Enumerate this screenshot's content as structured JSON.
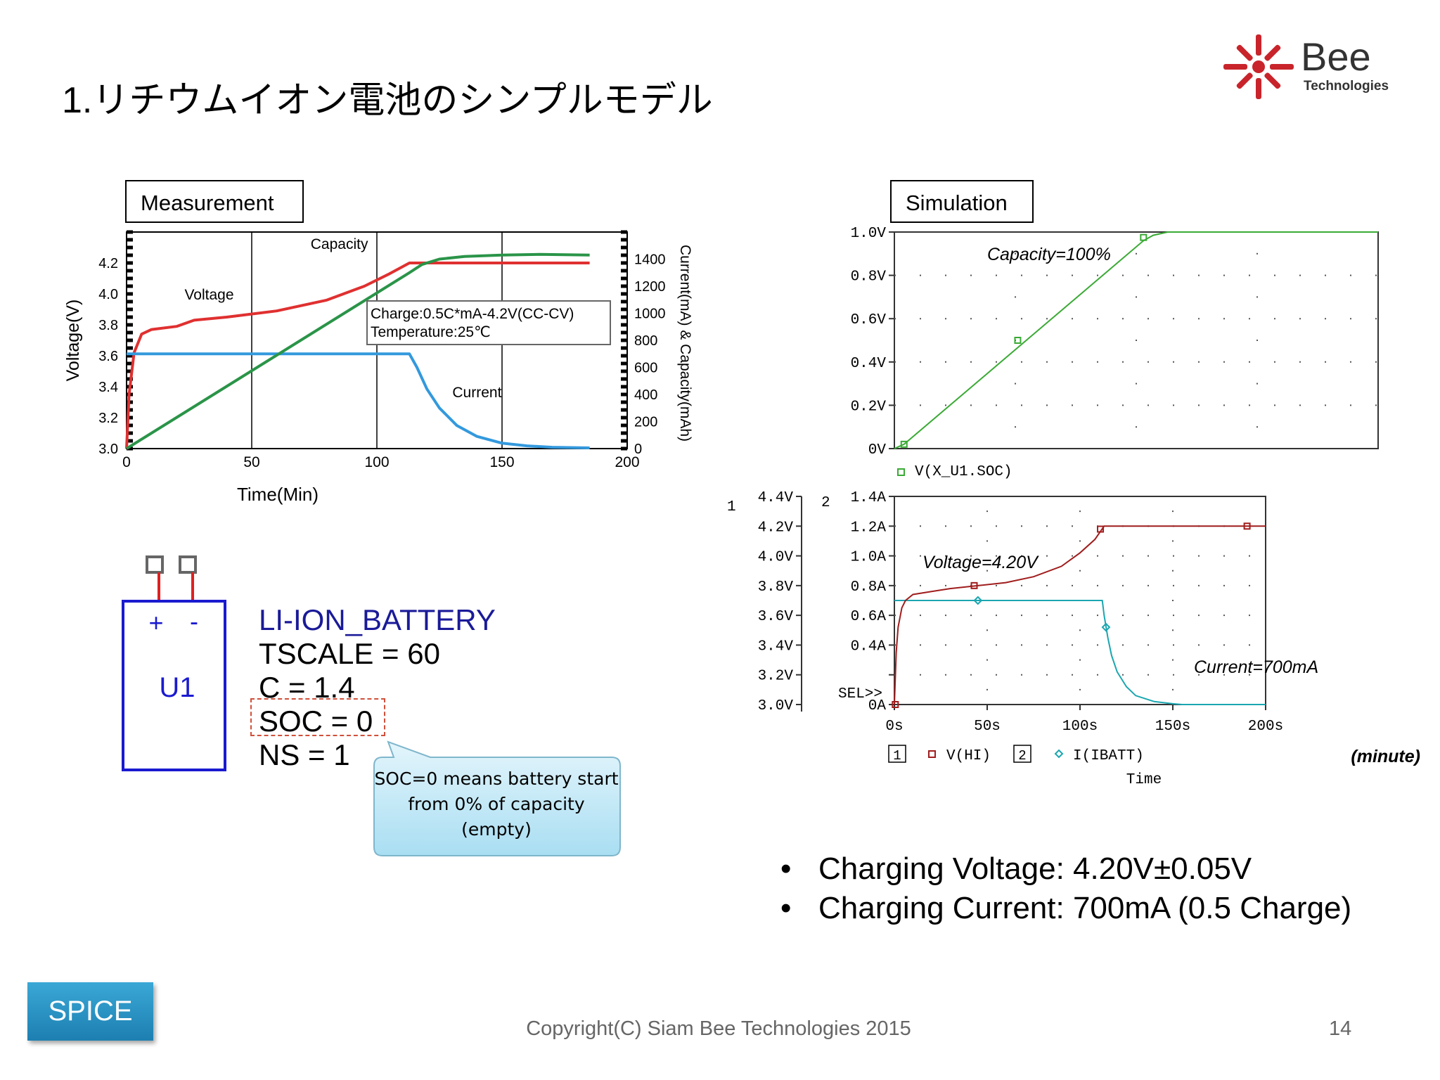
{
  "title": "1.リチウムイオン電池のシンプルモデル",
  "logo": {
    "text": "Bee",
    "subtext": "Technologies"
  },
  "measurement": {
    "label": "Measurement",
    "chart_data": {
      "type": "line",
      "xlabel": "Time(Min)",
      "ylabel": "Voltage(V)",
      "y2label": "Current(mA) & Capacity(mAh)",
      "xlim": [
        0,
        200
      ],
      "ylim": [
        3.0,
        4.4
      ],
      "y2lim": [
        0,
        1600
      ],
      "x_ticks": [
        "0",
        "50",
        "100",
        "150",
        "200"
      ],
      "y_ticks": [
        "3.0",
        "3.2",
        "3.4",
        "3.6",
        "3.8",
        "4.0",
        "4.2"
      ],
      "y2_ticks": [
        "0",
        "200",
        "400",
        "600",
        "800",
        "1000",
        "1200",
        "1400"
      ],
      "annotation": [
        "Charge:0.5C*mA-4.2V(CC-CV)",
        "Temperature:25℃"
      ],
      "series": [
        {
          "name": "Voltage",
          "color": "#e03030",
          "axis": "y",
          "x": [
            0,
            1,
            3,
            6,
            10,
            20,
            27,
            40,
            60,
            80,
            95,
            105,
            113,
            185
          ],
          "y": [
            3.0,
            3.35,
            3.62,
            3.74,
            3.77,
            3.79,
            3.83,
            3.85,
            3.89,
            3.96,
            4.05,
            4.13,
            4.2,
            4.2
          ]
        },
        {
          "name": "Current",
          "color": "#3399dd",
          "axis": "y2",
          "x": [
            0,
            113,
            116,
            120,
            125,
            132,
            140,
            150,
            160,
            170,
            185
          ],
          "y": [
            700,
            700,
            600,
            440,
            300,
            170,
            90,
            40,
            20,
            10,
            5
          ]
        },
        {
          "name": "Capacity",
          "color": "#2a9448",
          "axis": "y2",
          "x": [
            0,
            113,
            118,
            125,
            135,
            150,
            165,
            185
          ],
          "y": [
            0,
            1300,
            1360,
            1400,
            1420,
            1430,
            1435,
            1430
          ]
        }
      ]
    }
  },
  "simulation": {
    "label": "Simulation",
    "top_chart": {
      "chart_data": {
        "type": "line",
        "xlim": [
          0,
          200
        ],
        "ylim": [
          0,
          1.0
        ],
        "y_ticks": [
          "1.0V",
          "0.8V",
          "0.6V",
          "0.4V",
          "0.2V",
          "0V"
        ],
        "annotation": "Capacity=100%",
        "legend": "V(X_U1.SOC)",
        "series": [
          {
            "name": "V(X_U1.SOC)",
            "color": "#3aaa35",
            "x": [
              0,
              4,
              103,
              107,
              113,
              200
            ],
            "y": [
              0,
              0.02,
              0.96,
              0.985,
              1.0,
              1.0
            ]
          }
        ]
      }
    },
    "bottom_chart": {
      "chart_data": {
        "type": "line",
        "xlim": [
          0,
          200
        ],
        "ylim": [
          3.0,
          4.4
        ],
        "y2lim": [
          0,
          1.4
        ],
        "axis1_label": "1",
        "axis2_label": "2",
        "y_ticks": [
          "4.4V",
          "4.2V",
          "4.0V",
          "3.8V",
          "3.6V",
          "3.4V",
          "3.2V",
          "3.0V"
        ],
        "y2_ticks": [
          "1.4A",
          "1.2A",
          "1.0A",
          "0.8A",
          "0.6A",
          "0.4A",
          "0.2A",
          "0A"
        ],
        "x_ticks": [
          "0s",
          "50s",
          "100s",
          "150s",
          "200s"
        ],
        "sel_marker": "SEL>>",
        "xlabel": "Time",
        "unit_note": "(minute)",
        "annotations": [
          "Voltage=4.20V",
          "Current=700mA"
        ],
        "legend": [
          {
            "box": "1",
            "name": "V(HI)"
          },
          {
            "box": "2",
            "name": "I(IBATT)"
          }
        ],
        "series": [
          {
            "name": "V(HI)",
            "color": "#a01d1d",
            "axis": "y",
            "x": [
              0,
              1,
              2,
              4,
              6,
              10,
              20,
              30,
              45,
              60,
              75,
              90,
              100,
              108,
              113,
              200
            ],
            "y": [
              3.0,
              3.35,
              3.52,
              3.65,
              3.7,
              3.74,
              3.76,
              3.78,
              3.8,
              3.82,
              3.86,
              3.93,
              4.02,
              4.11,
              4.2,
              4.2
            ]
          },
          {
            "name": "I(IBATT)",
            "color": "#1aa6b0",
            "axis": "y2",
            "x": [
              0,
              112,
              113,
              115,
              117,
              120,
              125,
              130,
              140,
              150,
              155,
              200
            ],
            "y": [
              0.7,
              0.7,
              0.6,
              0.45,
              0.33,
              0.22,
              0.12,
              0.06,
              0.02,
              0.005,
              0.0,
              0.0
            ]
          }
        ]
      }
    }
  },
  "battery_symbol": {
    "label": "U1",
    "plus": "+",
    "minus": "-"
  },
  "params": [
    "LI-ION_BATTERY",
    "TSCALE = 60",
    "C = 1.4",
    "SOC = 0",
    "NS = 1"
  ],
  "callout": "SOC=0 means battery start from 0% of capacity (empty)",
  "bullets": [
    "Charging Voltage: 4.20V±0.05V",
    "Charging Current: 700mA (0.5 Charge)"
  ],
  "spice_button": "SPICE",
  "copyright": "Copyright(C) Siam Bee Technologies 2015",
  "page_number": "14"
}
